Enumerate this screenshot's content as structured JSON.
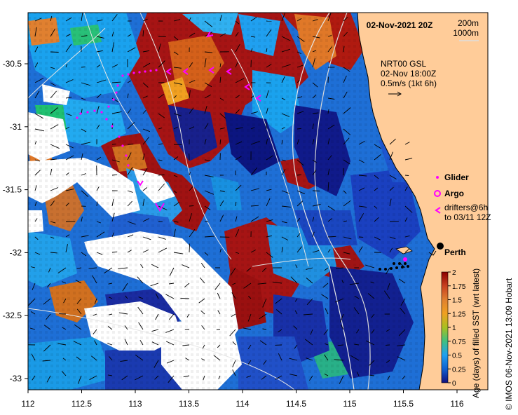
{
  "map": {
    "date_label": "02-Nov-2021 20Z",
    "isobath_labels": [
      "200m",
      "1000m"
    ],
    "current_source": "NRT00 GSL",
    "current_time": "02-Nov 18:00Z",
    "current_scale": "0.5m/s (1kt 6h)",
    "x_ticks": [
      "112",
      "112.5",
      "113",
      "113.5",
      "114",
      "114.5",
      "115",
      "115.5",
      "116"
    ],
    "y_ticks": [
      "-30.5",
      "-31",
      "-31.5",
      "-32",
      "-32.5",
      "-33"
    ],
    "legend": {
      "glider": "Glider",
      "argo": "Argo",
      "drifters_line1": "drifters@6h",
      "drifters_line2": "to 03/11 12Z"
    },
    "city": "Perth",
    "colorbar": {
      "title": "Age (days) of filled SST (wrt latest)",
      "ticks": [
        "2",
        "1.75",
        "1.5",
        "1.25",
        "1",
        "0.75",
        "0.5",
        "0.25",
        "0"
      ],
      "colors": [
        "#8b0000",
        "#c84020",
        "#e08030",
        "#f0a020",
        "#a8c020",
        "#40c080",
        "#20a0f0",
        "#1060d0",
        "#101080"
      ]
    },
    "credit": "© IMOS 06-Nov-2021 13:09 Hobart",
    "colors": {
      "land": "#ffcc99",
      "cloud": "#ffffff",
      "glider_track": "#ff00ff",
      "isobath": "#cccccc"
    }
  }
}
